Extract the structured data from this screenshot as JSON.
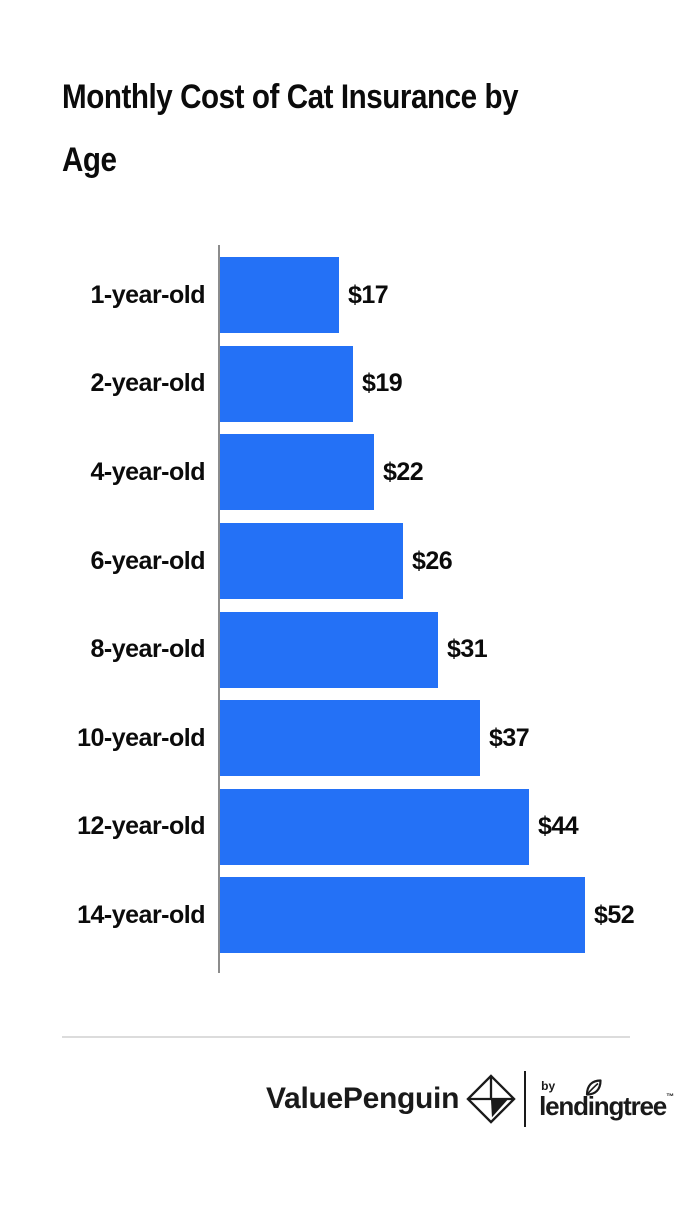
{
  "header": {
    "title_lines": [
      "Monthly Cost of Cat Insurance by",
      "Age"
    ]
  },
  "chart_data": {
    "type": "bar",
    "orientation": "horizontal",
    "title": "Monthly Cost of Cat Insurance by Age",
    "categories": [
      "1-year-old",
      "2-year-old",
      "4-year-old",
      "6-year-old",
      "8-year-old",
      "10-year-old",
      "12-year-old",
      "14-year-old"
    ],
    "values": [
      17,
      19,
      22,
      26,
      31,
      37,
      44,
      52
    ],
    "value_labels": [
      "$17",
      "$19",
      "$22",
      "$26",
      "$31",
      "$37",
      "$44",
      "$52"
    ],
    "xlabel": "",
    "ylabel": "",
    "xlim": [
      0,
      52
    ],
    "grid": false,
    "legend": false,
    "bar_color": "#2471F6",
    "axis_color": "#8C8C8C"
  },
  "footer": {
    "valuepenguin": "ValuePenguin",
    "by_label": "by",
    "lendingtree": "lendingtree",
    "trademark": "™",
    "icons": {
      "valuepenguin_mark": "diamond-origami-icon",
      "lendingtree_mark": "leaf-icon"
    }
  },
  "colors": {
    "background": "#FFFFFF",
    "title_text": "#0B0B0B",
    "divider": "#DCDCDC",
    "logo_text": "#1A1A1A"
  }
}
